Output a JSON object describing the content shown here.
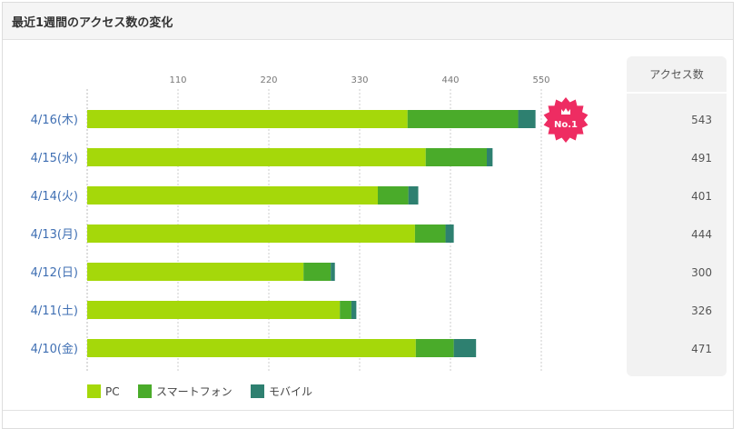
{
  "panel": {
    "title": "最近1週間のアクセス数の変化"
  },
  "colors": {
    "pc": "#a5d80a",
    "smartphone": "#4aab2a",
    "mobile": "#2e8070",
    "category_label": "#3f6fb3",
    "badge": "#ee2c62",
    "total_panel_bg": "#f2f2f2"
  },
  "badge": {
    "label": "No.1",
    "icon": "crown-icon"
  },
  "totals_header": "アクセス数",
  "chart_data": {
    "type": "bar",
    "orientation": "horizontal",
    "stacked": true,
    "categories": [
      "4/16(木)",
      "4/15(水)",
      "4/14(火)",
      "4/13(月)",
      "4/12(日)",
      "4/11(土)",
      "4/10(金)"
    ],
    "series": [
      {
        "name": "PC",
        "values": [
          388,
          410,
          352,
          397,
          262,
          306,
          398
        ]
      },
      {
        "name": "スマートフォン",
        "values": [
          134,
          74,
          37,
          37,
          33,
          14,
          46
        ]
      },
      {
        "name": "モバイル",
        "values": [
          21,
          7,
          12,
          10,
          5,
          6,
          27
        ]
      }
    ],
    "totals": [
      "543",
      "491",
      "401",
      "444",
      "300",
      "326",
      "471"
    ],
    "x_ticks": [
      "110",
      "220",
      "330",
      "440",
      "550"
    ],
    "xlim": [
      0,
      550
    ],
    "grid": true,
    "legend_position": "bottom-left",
    "highlight": "4/16(木)"
  }
}
